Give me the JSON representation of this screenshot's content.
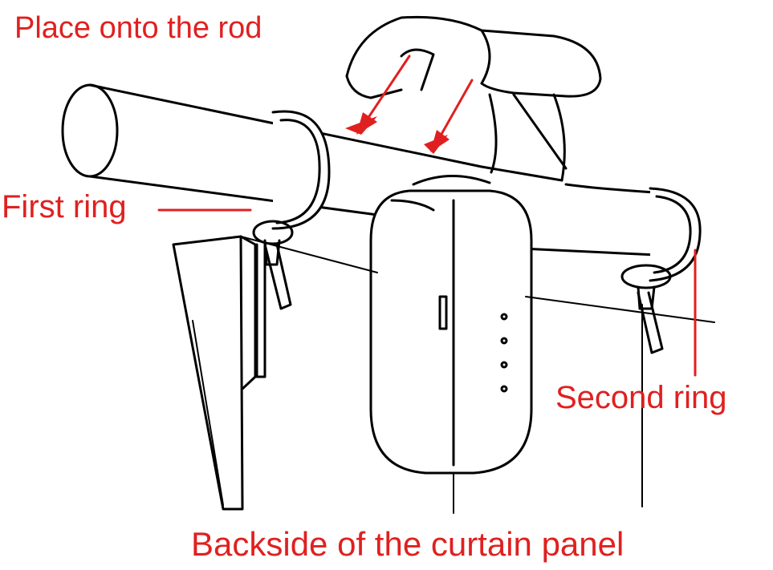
{
  "labels": {
    "place_onto_rod": "Place onto the rod",
    "first_ring": "First ring",
    "second_ring": "Second ring",
    "backside": "Backside of the curtain panel"
  },
  "colors": {
    "annotation": "#e02020",
    "line_art": "#000000",
    "background": "#ffffff"
  }
}
